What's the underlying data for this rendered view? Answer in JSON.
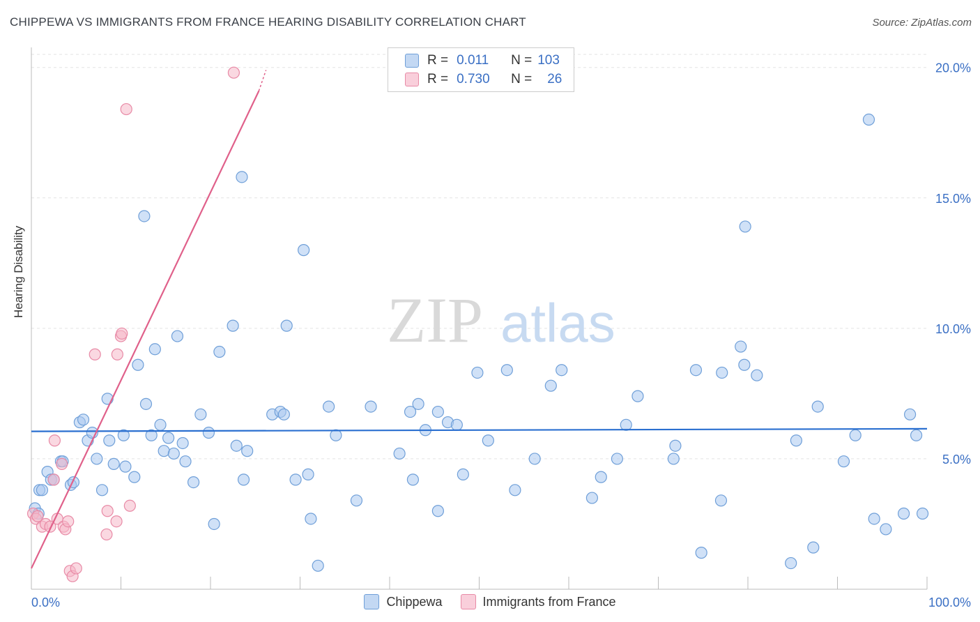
{
  "header": {
    "title": "CHIPPEWA VS IMMIGRANTS FROM FRANCE HEARING DISABILITY CORRELATION CHART",
    "source": "Source: ZipAtlas.com"
  },
  "watermark": {
    "zip": "ZIP",
    "atlas": "atlas"
  },
  "legend": {
    "rows": [
      {
        "r_label": "R =",
        "r_value": "0.011",
        "n_label": "N =",
        "n_value": "103",
        "color": "#a9c8f0"
      },
      {
        "r_label": "R =",
        "r_value": "0.730",
        "n_label": "N =",
        "n_value": "26",
        "color": "#f5b8c9"
      }
    ]
  },
  "bottom_legend": {
    "series1": "Chippewa",
    "series2": "Immigrants from France"
  },
  "colors": {
    "blue_fill": "#a9c8f0",
    "blue_stroke": "#6f9fd8",
    "blue_line": "#2a6fd0",
    "pink_fill": "#f5b8c9",
    "pink_stroke": "#e88aa6",
    "pink_line": "#e0608a",
    "tick_label": "#3a6fc4"
  },
  "chart_data": {
    "type": "scatter",
    "title": "CHIPPEWA VS IMMIGRANTS FROM FRANCE HEARING DISABILITY CORRELATION CHART",
    "xlabel": "",
    "ylabel": "Hearing Disability",
    "xlim": [
      0,
      100
    ],
    "ylim": [
      0,
      20.5
    ],
    "x_tick_labels": [
      "0.0%",
      "100.0%"
    ],
    "y_ticks": [
      5,
      10,
      15,
      20
    ],
    "y_tick_labels": [
      "5.0%",
      "10.0%",
      "15.0%",
      "20.0%"
    ],
    "series": [
      {
        "name": "Chippewa",
        "r": 0.011,
        "n": 103,
        "trend": {
          "x": [
            0,
            100
          ],
          "y": [
            6.05,
            6.15
          ]
        },
        "points": [
          [
            0.4,
            3.1
          ],
          [
            0.8,
            2.9
          ],
          [
            0.9,
            3.8
          ],
          [
            1.2,
            3.8
          ],
          [
            1.8,
            4.5
          ],
          [
            2.2,
            4.2
          ],
          [
            2.5,
            4.2
          ],
          [
            3.3,
            4.9
          ],
          [
            3.5,
            4.9
          ],
          [
            4.4,
            4.0
          ],
          [
            4.7,
            4.1
          ],
          [
            5.4,
            6.4
          ],
          [
            5.8,
            6.5
          ],
          [
            6.3,
            5.7
          ],
          [
            6.8,
            6.0
          ],
          [
            7.3,
            5.0
          ],
          [
            7.9,
            3.8
          ],
          [
            8.5,
            7.3
          ],
          [
            8.7,
            5.7
          ],
          [
            9.2,
            4.8
          ],
          [
            10.3,
            5.9
          ],
          [
            10.5,
            4.7
          ],
          [
            11.5,
            4.3
          ],
          [
            11.9,
            8.6
          ],
          [
            12.6,
            14.3
          ],
          [
            12.8,
            7.1
          ],
          [
            13.4,
            5.9
          ],
          [
            13.8,
            9.2
          ],
          [
            14.4,
            6.3
          ],
          [
            14.8,
            5.3
          ],
          [
            15.3,
            5.8
          ],
          [
            15.9,
            5.2
          ],
          [
            16.3,
            9.7
          ],
          [
            16.9,
            5.6
          ],
          [
            17.2,
            4.9
          ],
          [
            18.1,
            4.1
          ],
          [
            18.9,
            6.7
          ],
          [
            19.8,
            6.0
          ],
          [
            20.4,
            2.5
          ],
          [
            21.0,
            9.1
          ],
          [
            22.5,
            10.1
          ],
          [
            22.9,
            5.5
          ],
          [
            23.5,
            15.8
          ],
          [
            23.7,
            4.2
          ],
          [
            24.1,
            5.3
          ],
          [
            26.9,
            6.7
          ],
          [
            27.8,
            6.8
          ],
          [
            28.2,
            6.7
          ],
          [
            28.5,
            10.1
          ],
          [
            29.5,
            4.2
          ],
          [
            30.4,
            13.0
          ],
          [
            30.9,
            4.4
          ],
          [
            31.2,
            2.7
          ],
          [
            32.0,
            0.9
          ],
          [
            33.2,
            7.0
          ],
          [
            34.0,
            5.9
          ],
          [
            36.3,
            3.4
          ],
          [
            37.9,
            7.0
          ],
          [
            41.1,
            5.2
          ],
          [
            42.3,
            6.8
          ],
          [
            42.6,
            4.2
          ],
          [
            43.2,
            7.1
          ],
          [
            44.0,
            6.1
          ],
          [
            45.4,
            3.0
          ],
          [
            45.4,
            6.8
          ],
          [
            46.5,
            6.4
          ],
          [
            47.5,
            6.3
          ],
          [
            48.2,
            4.4
          ],
          [
            49.8,
            8.3
          ],
          [
            51.0,
            5.7
          ],
          [
            53.1,
            8.4
          ],
          [
            54.0,
            3.8
          ],
          [
            56.2,
            5.0
          ],
          [
            58.0,
            7.8
          ],
          [
            59.2,
            8.4
          ],
          [
            62.6,
            3.5
          ],
          [
            63.6,
            4.3
          ],
          [
            65.4,
            5.0
          ],
          [
            66.4,
            6.3
          ],
          [
            67.7,
            7.4
          ],
          [
            71.7,
            5.0
          ],
          [
            71.9,
            5.5
          ],
          [
            74.2,
            8.4
          ],
          [
            74.8,
            1.4
          ],
          [
            77.0,
            3.4
          ],
          [
            77.1,
            8.3
          ],
          [
            79.2,
            9.3
          ],
          [
            79.6,
            8.6
          ],
          [
            79.7,
            13.9
          ],
          [
            81.0,
            8.2
          ],
          [
            84.8,
            1.0
          ],
          [
            85.4,
            5.7
          ],
          [
            87.3,
            1.6
          ],
          [
            87.8,
            7.0
          ],
          [
            90.7,
            4.9
          ],
          [
            92.0,
            5.9
          ],
          [
            93.5,
            18.0
          ],
          [
            94.1,
            2.7
          ],
          [
            95.4,
            2.3
          ],
          [
            97.4,
            2.9
          ],
          [
            98.1,
            6.7
          ],
          [
            98.8,
            5.9
          ],
          [
            99.5,
            2.9
          ]
        ]
      },
      {
        "name": "Immigrants from France",
        "r": 0.73,
        "n": 26,
        "trend": {
          "x": [
            0,
            25.4
          ],
          "y": [
            0.8,
            19.1
          ],
          "dashed_to": {
            "x": 26.2,
            "y": 19.9
          }
        },
        "points": [
          [
            0.2,
            2.9
          ],
          [
            0.5,
            2.7
          ],
          [
            0.7,
            2.8
          ],
          [
            1.2,
            2.4
          ],
          [
            1.6,
            2.5
          ],
          [
            2.1,
            2.4
          ],
          [
            2.5,
            4.2
          ],
          [
            2.6,
            5.7
          ],
          [
            2.9,
            2.7
          ],
          [
            3.4,
            4.8
          ],
          [
            3.6,
            2.4
          ],
          [
            3.8,
            2.3
          ],
          [
            4.1,
            2.6
          ],
          [
            4.3,
            0.7
          ],
          [
            4.6,
            0.5
          ],
          [
            5.0,
            0.8
          ],
          [
            7.1,
            9.0
          ],
          [
            8.4,
            2.1
          ],
          [
            8.5,
            3.0
          ],
          [
            9.5,
            2.6
          ],
          [
            9.6,
            9.0
          ],
          [
            10.0,
            9.7
          ],
          [
            10.1,
            9.8
          ],
          [
            10.6,
            18.4
          ],
          [
            11.0,
            3.2
          ],
          [
            22.6,
            19.8
          ]
        ]
      }
    ]
  }
}
